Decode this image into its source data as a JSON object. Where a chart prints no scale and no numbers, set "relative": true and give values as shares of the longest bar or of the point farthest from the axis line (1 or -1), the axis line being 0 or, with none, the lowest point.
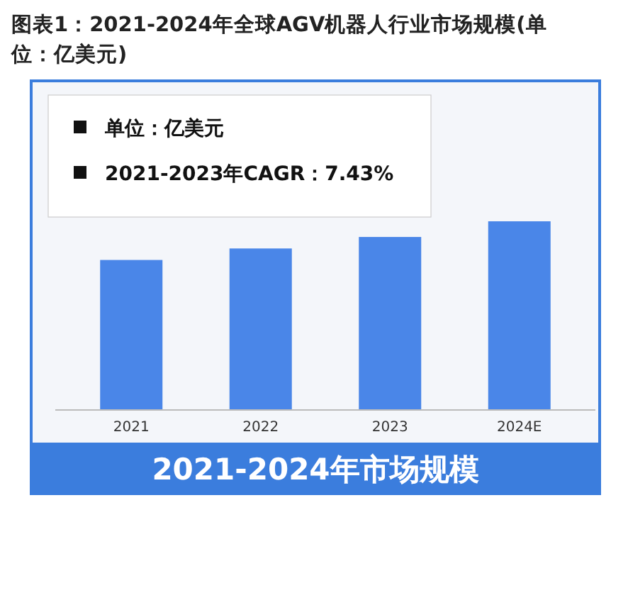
{
  "chart_data": {
    "type": "bar",
    "title": "图表1：2021-2024年全球AGV机器人行业市场规模(单位：亿美元)",
    "xlabel": "2021-2024年市场规模",
    "relative": true,
    "categories": [
      "2021",
      "2022",
      "2023",
      "2024E"
    ],
    "values": [
      0.795,
      0.856,
      0.917,
      1
    ],
    "color": "#4a86e8",
    "annotations": [
      "单位：亿美元",
      "2021-2023年CAGR：7.43%"
    ]
  }
}
